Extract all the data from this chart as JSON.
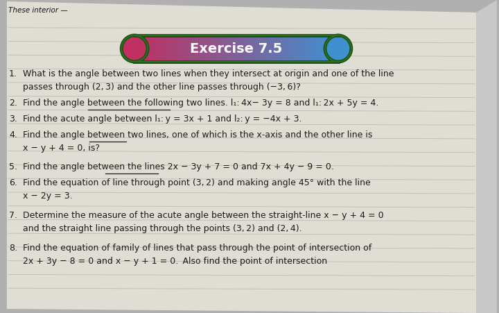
{
  "bg_color": "#b0b0b0",
  "page_color": "#e0ddd5",
  "page_grid_color": "#c8c4bc",
  "right_bg_color": "#c8c8c8",
  "title": "Exercise 7.5",
  "title_color": "#ffffff",
  "title_fontsize": 14,
  "title_pill_left_color": "#c03060",
  "title_pill_right_color": "#4090d0",
  "title_pill_border": "#2a6020",
  "corner_text": "These interior —",
  "text_color": "#1a1a1a",
  "ruled_line_color": "#b0aca4",
  "num_ruled_lines": 20,
  "text_fontsize": 9.0,
  "q1_line1": "What is the angle between two lines when they intersect at origin and one of the line",
  "q1_line2": "passes through (2, 3) and the other line passes through (−3, 6)?",
  "q2_line1": "Find the angle between the following two lines. l₁: 4x− 3y = 8 and l₁: 2x + 5y = 4.",
  "q3_line1": "Find the acute angle between l₁: y = 3x + 1 and l₂: y = −4x + 3.",
  "q4_line1": "Find the angle between two lines, one of which is the x-axis and the other line is",
  "q4_line2": "x − y + 4 = 0, is?",
  "q5_line1": "Find the angle between the lines 2x − 3y + 7 = 0 and 7x + 4y − 9 = 0.",
  "q6_line1": "Find the equation of line through point (3, 2) and making angle 45° with the line",
  "q6_line2": "x − 2y = 3.",
  "q7_line1": "Determine the measure of the acute angle between the straight-line x − y + 4 = 0",
  "q7_line2": "and the straight line passing through the points (3, 2) and (2, 4).",
  "q8_line1": "Find the equation of family of lines that pass through the point of intersection of",
  "q8_line2": "2x + 3y − 8 = 0 and x − y + 1 = 0. Also find the point of intersection"
}
